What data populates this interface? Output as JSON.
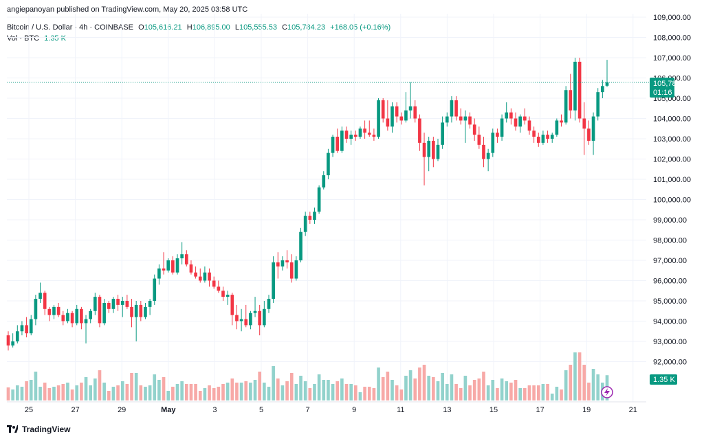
{
  "header": {
    "publish_line": "angiepanoyan published on TradingView.com, May 20, 2025 03:58 UTC",
    "symbol": "Bitcoin / U.S. Dollar · 4h · COINBASE",
    "o_label": "O",
    "o_value": "105,616.21",
    "h_label": "H",
    "h_value": "106,895.00",
    "l_label": "L",
    "l_value": "105,555.53",
    "c_label": "C",
    "c_value": "105,784.23",
    "change": "+168.05 (+0.16%)",
    "vol_label": "Vol · BTC",
    "vol_value": "1.35 K"
  },
  "footer": {
    "brand": "TradingView"
  },
  "colors": {
    "up": "#089981",
    "down": "#F23645",
    "vol_up": "#92D2CC",
    "vol_down": "#F7A9A7",
    "grid": "#F0F3FA"
  },
  "chart_data": {
    "type": "candlestick",
    "y_ticks": [
      "92,000.00",
      "93,000.00",
      "94,000.00",
      "95,000.00",
      "96,000.00",
      "97,000.00",
      "98,000.00",
      "99,000.00",
      "100,000.00",
      "101,000.00",
      "102,000.00",
      "103,000.00",
      "104,000.00",
      "105,000.00",
      "106,000.00",
      "107,000.00",
      "108,000.00",
      "109,000.00"
    ],
    "x_ticks": [
      "25",
      "27",
      "29",
      "May",
      "3",
      "5",
      "7",
      "9",
      "11",
      "13",
      "15",
      "17",
      "19",
      "21"
    ],
    "last_price_label": "105,784.23",
    "countdown_label": "01:16",
    "volume_label": "1.35 K",
    "last_price": 105784.23,
    "ylim": [
      91500,
      109100
    ],
    "candles": [
      [
        93300,
        93500,
        92550,
        92800
      ],
      [
        92800,
        93400,
        92700,
        93000
      ],
      [
        93000,
        93800,
        92900,
        93500
      ],
      [
        93500,
        94000,
        93300,
        93800
      ],
      [
        93800,
        94200,
        93200,
        93400
      ],
      [
        93400,
        94300,
        93300,
        94100
      ],
      [
        94100,
        95300,
        93800,
        95100
      ],
      [
        95100,
        95900,
        94900,
        95400
      ],
      [
        95400,
        95500,
        94300,
        94600
      ],
      [
        94600,
        94700,
        94000,
        94300
      ],
      [
        94300,
        94800,
        94100,
        94700
      ],
      [
        94700,
        94900,
        94200,
        94300
      ],
      [
        94300,
        94500,
        93800,
        94000
      ],
      [
        94000,
        94600,
        93900,
        94400
      ],
      [
        94400,
        94500,
        93700,
        93900
      ],
      [
        93900,
        94800,
        93800,
        94600
      ],
      [
        94600,
        94700,
        93600,
        93900
      ],
      [
        93900,
        94300,
        92900,
        94100
      ],
      [
        94100,
        94600,
        93900,
        94500
      ],
      [
        94500,
        95400,
        94300,
        95200
      ],
      [
        95200,
        95300,
        93700,
        93900
      ],
      [
        93900,
        95100,
        93800,
        94900
      ],
      [
        94900,
        95000,
        94400,
        94600
      ],
      [
        94600,
        95200,
        94400,
        95100
      ],
      [
        95100,
        95300,
        94500,
        94800
      ],
      [
        94800,
        95200,
        94200,
        95000
      ],
      [
        95000,
        95300,
        94600,
        94700
      ],
      [
        94700,
        95100,
        93700,
        94200
      ],
      [
        94200,
        95000,
        93000,
        94800
      ],
      [
        94800,
        95000,
        94000,
        94200
      ],
      [
        94200,
        94900,
        94100,
        94700
      ],
      [
        94700,
        95100,
        94300,
        95000
      ],
      [
        95000,
        96300,
        94800,
        96100
      ],
      [
        96100,
        96800,
        95800,
        96600
      ],
      [
        96600,
        97400,
        96300,
        96500
      ],
      [
        96500,
        97100,
        96400,
        97000
      ],
      [
        97000,
        97200,
        96300,
        96400
      ],
      [
        96400,
        97300,
        96300,
        97100
      ],
      [
        97100,
        97900,
        96800,
        97300
      ],
      [
        97300,
        97500,
        96700,
        96800
      ],
      [
        96800,
        97000,
        96300,
        96400
      ],
      [
        96400,
        96700,
        96100,
        96200
      ],
      [
        96200,
        96600,
        95900,
        96000
      ],
      [
        96000,
        96700,
        95900,
        96400
      ],
      [
        96400,
        96600,
        95700,
        96000
      ],
      [
        96000,
        96200,
        95600,
        95700
      ],
      [
        95700,
        96000,
        95400,
        95500
      ],
      [
        95500,
        95700,
        95000,
        95200
      ],
      [
        95200,
        95500,
        94800,
        95300
      ],
      [
        95300,
        95400,
        93800,
        94300
      ],
      [
        94300,
        94800,
        93600,
        94000
      ],
      [
        94000,
        94600,
        93500,
        94100
      ],
      [
        94100,
        94800,
        93700,
        93800
      ],
      [
        93800,
        94500,
        93600,
        94400
      ],
      [
        94400,
        95200,
        94200,
        94500
      ],
      [
        94500,
        94800,
        93300,
        93800
      ],
      [
        93800,
        95000,
        93700,
        94600
      ],
      [
        94600,
        95300,
        94400,
        95100
      ],
      [
        95100,
        97200,
        94900,
        96900
      ],
      [
        96900,
        97400,
        96100,
        96700
      ],
      [
        96700,
        97200,
        96500,
        97000
      ],
      [
        97000,
        97500,
        96600,
        96900
      ],
      [
        96900,
        97300,
        95900,
        96100
      ],
      [
        96100,
        97200,
        96000,
        97000
      ],
      [
        97000,
        98600,
        96900,
        98400
      ],
      [
        98400,
        99400,
        98200,
        99200
      ],
      [
        99200,
        99400,
        98800,
        99000
      ],
      [
        99000,
        99600,
        98800,
        99400
      ],
      [
        99400,
        100700,
        99300,
        100600
      ],
      [
        100600,
        101400,
        100500,
        101200
      ],
      [
        101200,
        102500,
        101000,
        102300
      ],
      [
        102300,
        103200,
        102100,
        103100
      ],
      [
        103100,
        103500,
        102300,
        102400
      ],
      [
        102400,
        103600,
        102300,
        103400
      ],
      [
        103400,
        103600,
        102800,
        103000
      ],
      [
        103000,
        103400,
        102700,
        103200
      ],
      [
        103200,
        103400,
        102900,
        103100
      ],
      [
        103100,
        103600,
        103000,
        103500
      ],
      [
        103500,
        103900,
        103000,
        103300
      ],
      [
        103300,
        103900,
        103100,
        103200
      ],
      [
        103200,
        103500,
        102900,
        103100
      ],
      [
        103100,
        105000,
        103000,
        104900
      ],
      [
        104900,
        105000,
        103800,
        104000
      ],
      [
        104000,
        104900,
        103400,
        103600
      ],
      [
        103600,
        104800,
        103300,
        104600
      ],
      [
        104600,
        104800,
        103800,
        104100
      ],
      [
        104100,
        104300,
        103700,
        103900
      ],
      [
        103900,
        105300,
        103800,
        104400
      ],
      [
        104400,
        105800,
        104000,
        104600
      ],
      [
        104600,
        104900,
        103800,
        104000
      ],
      [
        104000,
        104200,
        102400,
        102800
      ],
      [
        102800,
        103300,
        100700,
        102100
      ],
      [
        102100,
        103100,
        101400,
        102900
      ],
      [
        102900,
        103100,
        101600,
        102000
      ],
      [
        102000,
        103000,
        101900,
        102700
      ],
      [
        102700,
        104100,
        102500,
        103800
      ],
      [
        103800,
        104300,
        103600,
        104100
      ],
      [
        104100,
        105100,
        103800,
        104900
      ],
      [
        104900,
        105100,
        103900,
        104100
      ],
      [
        104100,
        104500,
        103700,
        103900
      ],
      [
        103900,
        104400,
        102800,
        104100
      ],
      [
        104100,
        104300,
        103500,
        103700
      ],
      [
        103700,
        104000,
        102900,
        103200
      ],
      [
        103200,
        103600,
        102500,
        102700
      ],
      [
        102700,
        103100,
        101600,
        102000
      ],
      [
        102000,
        102500,
        101400,
        102300
      ],
      [
        102300,
        103500,
        102100,
        103300
      ],
      [
        103300,
        103500,
        102800,
        103100
      ],
      [
        103100,
        104200,
        102900,
        104000
      ],
      [
        104000,
        104800,
        103800,
        104300
      ],
      [
        104300,
        104500,
        103700,
        104000
      ],
      [
        104000,
        104300,
        103400,
        103600
      ],
      [
        103600,
        104200,
        103300,
        104100
      ],
      [
        104100,
        104500,
        103700,
        103900
      ],
      [
        103900,
        104100,
        103200,
        103400
      ],
      [
        103400,
        103600,
        102800,
        103100
      ],
      [
        103100,
        103300,
        102600,
        102800
      ],
      [
        102800,
        103400,
        102700,
        103200
      ],
      [
        103200,
        103400,
        102800,
        103000
      ],
      [
        103000,
        103300,
        102800,
        103200
      ],
      [
        103200,
        104000,
        103100,
        103900
      ],
      [
        103900,
        104200,
        103600,
        103800
      ],
      [
        103800,
        105600,
        103700,
        105400
      ],
      [
        105400,
        106200,
        104000,
        104400
      ],
      [
        104400,
        107000,
        103900,
        106800
      ],
      [
        106800,
        107000,
        103800,
        104000
      ],
      [
        104000,
        104800,
        102200,
        103500
      ],
      [
        103500,
        103900,
        102700,
        102900
      ],
      [
        102900,
        104300,
        102200,
        104100
      ],
      [
        104100,
        105500,
        103900,
        105300
      ],
      [
        105300,
        105900,
        105000,
        105600
      ],
      [
        105616,
        106895,
        105556,
        105784
      ]
    ]
  }
}
